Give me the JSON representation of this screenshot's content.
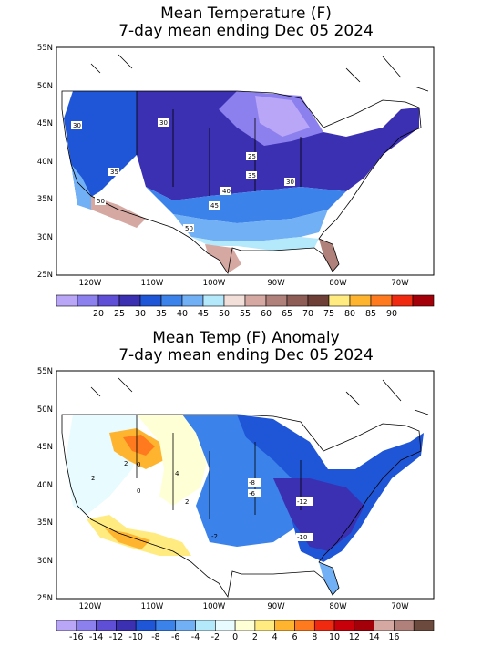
{
  "panels": [
    {
      "title_line1": "Mean Temperature (F)",
      "title_line2": "7-day mean ending Dec 05 2024",
      "lat_labels": [
        "55N",
        "50N",
        "45N",
        "40N",
        "35N",
        "30N",
        "25N"
      ],
      "lon_labels": [
        "120W",
        "110W",
        "100W",
        "90W",
        "80W",
        "70W"
      ],
      "contour_labels": [
        "30",
        "30",
        "25",
        "35",
        "35",
        "30",
        "40",
        "45",
        "50",
        "50"
      ],
      "colorbar": {
        "colors": [
          "#b9a6f6",
          "#8c80ef",
          "#5f4fd6",
          "#3b2fb2",
          "#1f56d8",
          "#3b82ea",
          "#72b0f5",
          "#b4e8fb",
          "#f2dfd9",
          "#d5a8a2",
          "#b0807a",
          "#8e5d56",
          "#6d3f37",
          "#ffeb80",
          "#ffb430",
          "#ff7a1f",
          "#ef2a10",
          "#a4000a"
        ],
        "labels": [
          "20",
          "25",
          "30",
          "35",
          "40",
          "45",
          "50",
          "55",
          "60",
          "65",
          "70",
          "75",
          "80",
          "85",
          "90"
        ]
      }
    },
    {
      "title_line1": "Mean Temp (F) Anomaly",
      "title_line2": "7-day mean ending Dec 05 2024",
      "lat_labels": [
        "55N",
        "50N",
        "45N",
        "40N",
        "35N",
        "30N",
        "25N"
      ],
      "lon_labels": [
        "120W",
        "110W",
        "100W",
        "90W",
        "80W",
        "70W"
      ],
      "contour_labels": [
        "2",
        "0",
        "4",
        "2",
        "0",
        "2",
        "-8",
        "-6",
        "-12",
        "-10",
        "-2"
      ],
      "colorbar": {
        "colors": [
          "#b9a6f6",
          "#8c80ef",
          "#5f4fd6",
          "#3b2fb2",
          "#1f56d8",
          "#3b82ea",
          "#72b0f5",
          "#b4e8fb",
          "#e8fbff",
          "#ffffd6",
          "#ffeb80",
          "#ffb430",
          "#ff7a1f",
          "#ef2a10",
          "#c8000a",
          "#a4000a",
          "#d6a8a2",
          "#b0807a",
          "#6d4a3e"
        ],
        "labels": [
          "-16",
          "-14",
          "-12",
          "-10",
          "-8",
          "-6",
          "-4",
          "-2",
          "0",
          "2",
          "4",
          "6",
          "8",
          "10",
          "12",
          "14",
          "16"
        ]
      }
    }
  ]
}
